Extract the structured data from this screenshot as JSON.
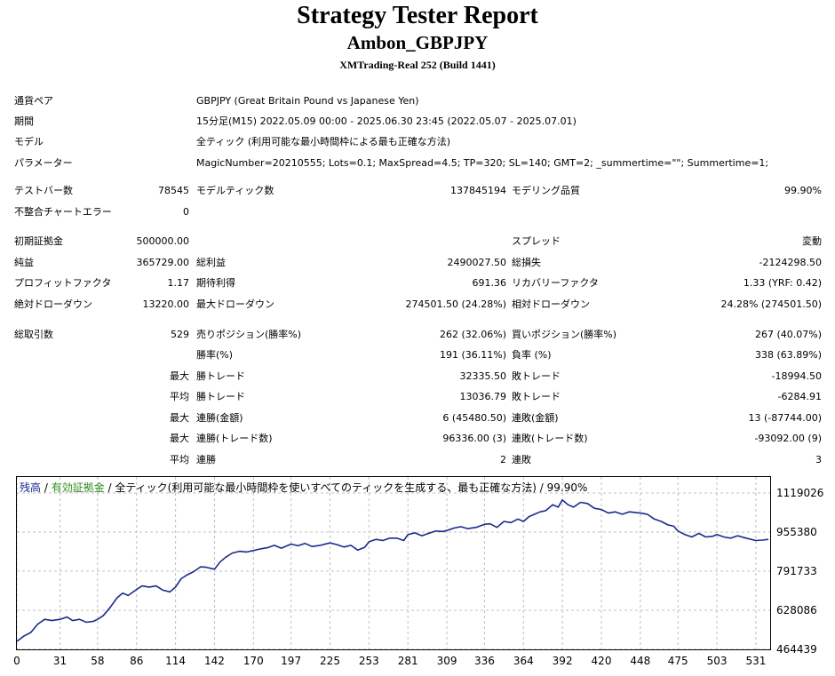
{
  "report": {
    "title": "Strategy Tester Report",
    "ea_name": "Ambon_GBPJPY",
    "server": "XMTrading-Real 252 (Build 1441)"
  },
  "settings": {
    "symbol_label": "通貨ペア",
    "symbol_value": "GBPJPY (Great Britain Pound vs Japanese Yen)",
    "period_label": "期間",
    "period_value": "15分足(M15) 2022.05.09 00:00 - 2025.06.30 23:45 (2022.05.07 - 2025.07.01)",
    "model_label": "モデル",
    "model_value": "全ティック (利用可能な最小時間枠による最も正確な方法)",
    "params_label": "パラメーター",
    "params_value": "MagicNumber=20210555; Lots=0.1; MaxSpread=4.5; TP=320; SL=140; GMT=2; _summertime=\"\"; Summertime=1;"
  },
  "stats": {
    "bars_label": "テストバー数",
    "bars_value": "78545",
    "ticks_label": "モデルティック数",
    "ticks_value": "137845194",
    "quality_label": "モデリング品質",
    "quality_value": "99.90%",
    "mismatch_label": "不整合チャートエラー",
    "mismatch_value": "0",
    "deposit_label": "初期証拠金",
    "deposit_value": "500000.00",
    "spread_label": "スプレッド",
    "spread_value": "変動",
    "net_label": "純益",
    "net_value": "365729.00",
    "gross_profit_label": "総利益",
    "gross_profit_value": "2490027.50",
    "gross_loss_label": "総損失",
    "gross_loss_value": "-2124298.50",
    "pf_label": "プロフィットファクタ",
    "pf_value": "1.17",
    "expected_label": "期待利得",
    "expected_value": "691.36",
    "recovery_label": "リカバリーファクタ",
    "recovery_value": "1.33 (YRF: 0.42)",
    "abs_dd_label": "絶対ドローダウン",
    "abs_dd_value": "13220.00",
    "max_dd_label": "最大ドローダウン",
    "max_dd_value": "274501.50 (24.28%)",
    "rel_dd_label": "相対ドローダウン",
    "rel_dd_value": "24.28% (274501.50)",
    "trades_label": "総取引数",
    "trades_value": "529",
    "short_label": "売りポジション(勝率%)",
    "short_value": "262 (32.06%)",
    "long_label": "買いポジション(勝率%)",
    "long_value": "267 (40.07%)",
    "winrate_label": "勝率(%)",
    "winrate_value": "191 (36.11%)",
    "lossrate_label": "負率 (%)",
    "lossrate_value": "338 (63.89%)",
    "max_prefix": "最大",
    "avg_prefix": "平均",
    "largest_win_label": "勝トレード",
    "largest_win_value": "32335.50",
    "largest_loss_label": "敗トレード",
    "largest_loss_value": "-18994.50",
    "avg_win_label": "勝トレード",
    "avg_win_value": "13036.79",
    "avg_loss_label": "敗トレード",
    "avg_loss_value": "-6284.91",
    "cons_win_money_label": "連勝(金額)",
    "cons_win_money_value": "6 (45480.50)",
    "cons_loss_money_label": "連敗(金額)",
    "cons_loss_money_value": "13 (-87744.00)",
    "cons_win_trades_label": "連勝(トレード数)",
    "cons_win_trades_value": "96336.00 (3)",
    "cons_loss_trades_label": "連敗(トレード数)",
    "cons_loss_trades_value": "-93092.00 (9)",
    "avg_cons_win_label": "連勝",
    "avg_cons_win_value": "2",
    "avg_cons_loss_label": "連敗",
    "avg_cons_loss_value": "3"
  },
  "chart_legend": {
    "balance": "残高",
    "sep1": " / ",
    "equity": "有効証拠金",
    "rest": " / 全ティック(利用可能な最小時間枠を使いすべてのティックを生成する、最も正確な方法) / 99.90%"
  },
  "colors": {
    "line": "#1a2a8c",
    "balance_legend": "#1a2a8c",
    "equity_legend": "#2e8b1e",
    "grid": "#bfbfbf"
  },
  "chart_data": {
    "type": "line",
    "series": [
      {
        "name": "残高",
        "x": [
          0,
          5,
          10,
          15,
          20,
          25,
          31,
          36,
          40,
          45,
          50,
          55,
          58,
          62,
          67,
          72,
          76,
          80,
          86,
          90,
          95,
          100,
          105,
          110,
          114,
          118,
          122,
          127,
          132,
          136,
          142,
          146,
          150,
          155,
          160,
          165,
          170,
          175,
          180,
          185,
          190,
          197,
          202,
          207,
          212,
          218,
          225,
          230,
          235,
          240,
          245,
          250,
          253,
          258,
          263,
          268,
          273,
          278,
          281,
          286,
          291,
          296,
          301,
          306,
          309,
          314,
          319,
          324,
          330,
          336,
          340,
          345,
          350,
          355,
          360,
          364,
          368,
          372,
          376,
          380,
          385,
          389,
          392,
          396,
          400,
          405,
          410,
          415,
          420,
          425,
          430,
          435,
          440,
          448,
          453,
          458,
          463,
          468,
          472,
          475,
          480,
          485,
          490,
          495,
          500,
          503,
          508,
          513,
          518,
          524,
          531,
          536,
          540
        ],
        "y": [
          498000,
          520000,
          535000,
          570000,
          590000,
          585000,
          590000,
          600000,
          585000,
          590000,
          578000,
          582000,
          590000,
          605000,
          640000,
          680000,
          700000,
          690000,
          715000,
          730000,
          725000,
          730000,
          712000,
          705000,
          725000,
          760000,
          775000,
          790000,
          810000,
          808000,
          800000,
          830000,
          850000,
          868000,
          875000,
          872000,
          878000,
          885000,
          890000,
          900000,
          888000,
          905000,
          898000,
          908000,
          895000,
          900000,
          910000,
          903000,
          893000,
          900000,
          880000,
          892000,
          915000,
          925000,
          920000,
          930000,
          930000,
          920000,
          945000,
          952000,
          940000,
          950000,
          960000,
          958000,
          962000,
          972000,
          978000,
          970000,
          975000,
          988000,
          990000,
          975000,
          1000000,
          995000,
          1010000,
          1000000,
          1020000,
          1030000,
          1040000,
          1045000,
          1070000,
          1060000,
          1090000,
          1070000,
          1060000,
          1080000,
          1075000,
          1055000,
          1050000,
          1035000,
          1040000,
          1030000,
          1040000,
          1035000,
          1030000,
          1010000,
          1000000,
          985000,
          980000,
          960000,
          945000,
          935000,
          950000,
          935000,
          938000,
          945000,
          935000,
          930000,
          940000,
          930000,
          920000,
          922000,
          925000
        ]
      }
    ],
    "xlim": [
      0,
      540
    ],
    "ylim": [
      464439,
      1119026
    ],
    "x_ticks": [
      0,
      31,
      58,
      86,
      114,
      142,
      170,
      197,
      225,
      253,
      281,
      309,
      336,
      364,
      392,
      420,
      448,
      475,
      503,
      531
    ],
    "y_ticks": [
      1119026,
      955380,
      791733,
      628086,
      464439
    ],
    "grid": true
  }
}
